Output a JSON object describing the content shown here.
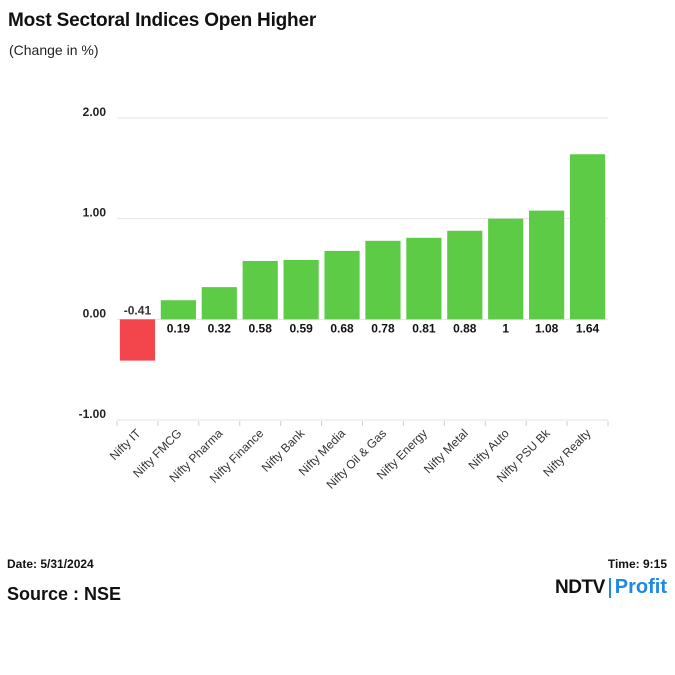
{
  "header": {
    "title": "Most Sectoral Indices Open Higher",
    "subtitle": "(Change in %)"
  },
  "footer": {
    "date": "Date: 5/31/2024",
    "time": "Time: 9:15",
    "source": "Source : NSE",
    "logo_ndtv": "NDTV",
    "logo_profit": "Profit"
  },
  "colors": {
    "positive": "#5ecb47",
    "negative": "#f2464c",
    "logo_accent": "#1e88e5"
  },
  "chart_data": {
    "type": "bar",
    "title": "Most Sectoral Indices Open Higher",
    "subtitle": "(Change in %)",
    "categories": [
      "Nifty IT",
      "Nifty FMCG",
      "Nifty Pharma",
      "Nifty Finance",
      "Nifty Bank",
      "Nifty Media",
      "Nifty Oil & Gas",
      "Nifty Energy",
      "Nifty Metal",
      "Nifty Auto",
      "Nifty PSU Bk",
      "Nifty Realty"
    ],
    "values": [
      -0.41,
      0.19,
      0.32,
      0.58,
      0.59,
      0.68,
      0.78,
      0.81,
      0.88,
      1,
      1.08,
      1.64
    ],
    "data_labels": [
      "-0.41",
      "0.19",
      "0.32",
      "0.58",
      "0.59",
      "0.68",
      "0.78",
      "0.81",
      "0.88",
      "1",
      "1.08",
      "1.64"
    ],
    "y_ticks": [
      "2.00",
      "1.00",
      "0.00",
      "-1.00"
    ],
    "ylim": [
      -1,
      2
    ],
    "grid": true,
    "legend": "none"
  }
}
